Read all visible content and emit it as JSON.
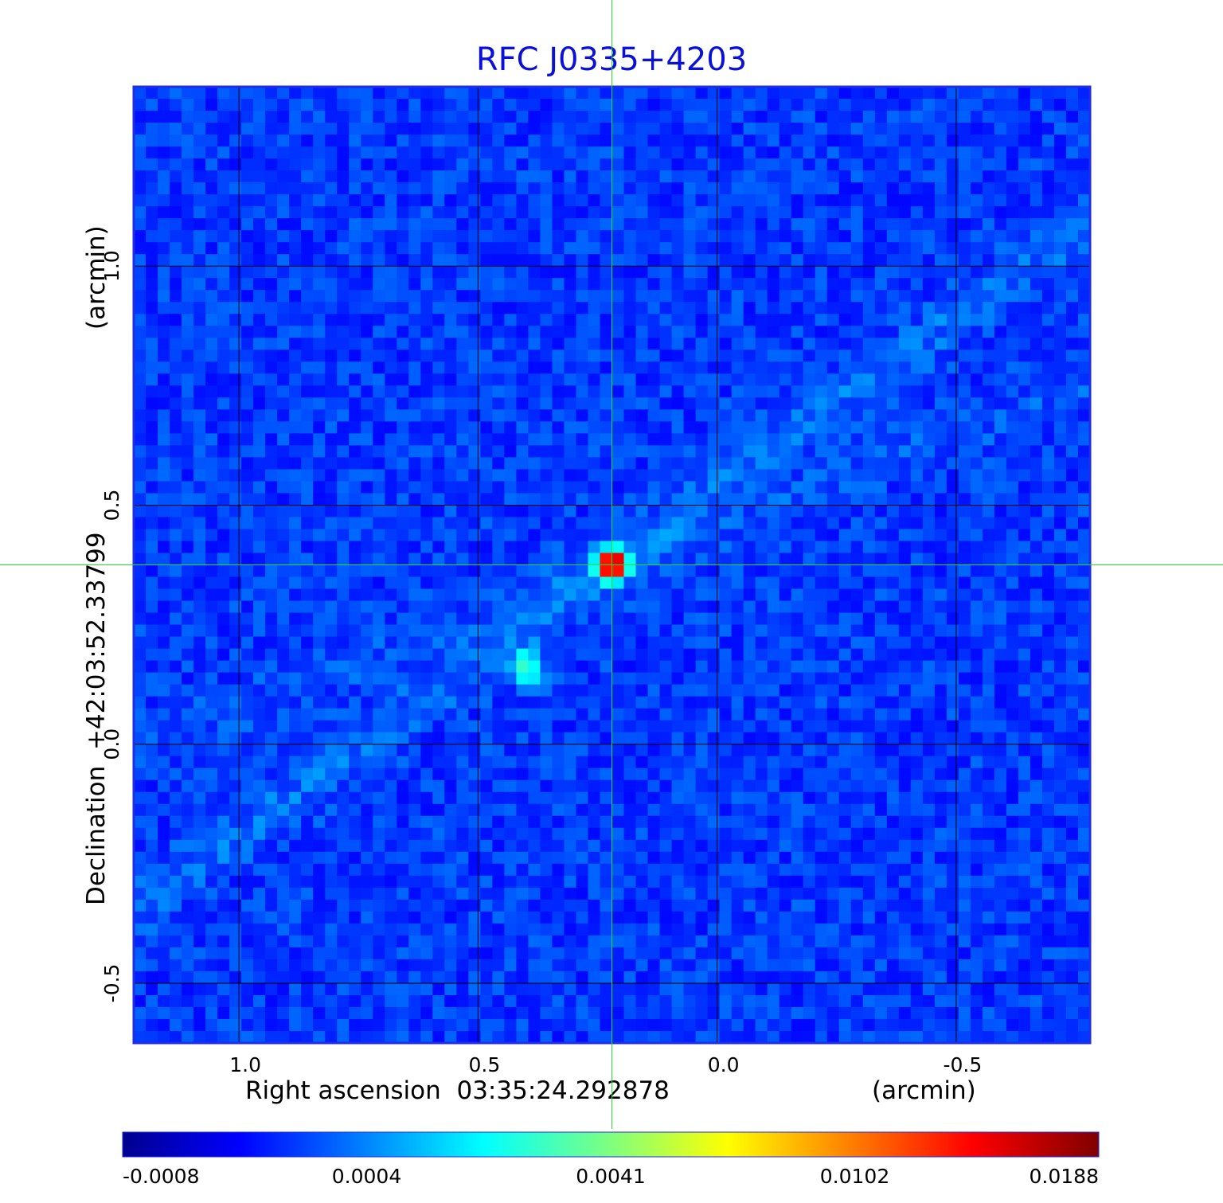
{
  "chart_data": {
    "type": "heatmap",
    "title": "RFC J0335+4203",
    "xlabel": "Right ascension  03:35:24.292878",
    "xunit": "(arcmin)",
    "ylabel": "Declination  +42:03:52.33799",
    "yunit": "(arcmin)",
    "xlim": [
      1.22,
      -0.78
    ],
    "ylim": [
      -0.625,
      1.375
    ],
    "xticks": [
      1.0,
      0.5,
      0.0,
      -0.5
    ],
    "xtick_labels": [
      "1.0",
      "0.5",
      "0.0",
      "-0.5"
    ],
    "yticks": [
      1.0,
      0.5,
      0.0,
      -0.5
    ],
    "ytick_labels": [
      "1.0",
      "0.5",
      "0.0",
      "-0.5"
    ],
    "grid": true,
    "crosshair": {
      "x": 0.22,
      "y": 0.375
    },
    "colormap": "jet",
    "colorbar_ticks": [
      "-0.0008",
      "0.0004",
      "0.0041",
      "0.0102",
      "0.0188"
    ],
    "peak": {
      "x": 0.22,
      "y": 0.375,
      "value": 0.0188
    },
    "secondary_component": {
      "x": 0.4,
      "y": 0.16,
      "value": 0.0035
    },
    "background_level": 0.0
  },
  "colors": {
    "title": "#0a10d8",
    "frame": "#1f2ee6",
    "crosshair": "#22e022",
    "grid": "#000000"
  }
}
